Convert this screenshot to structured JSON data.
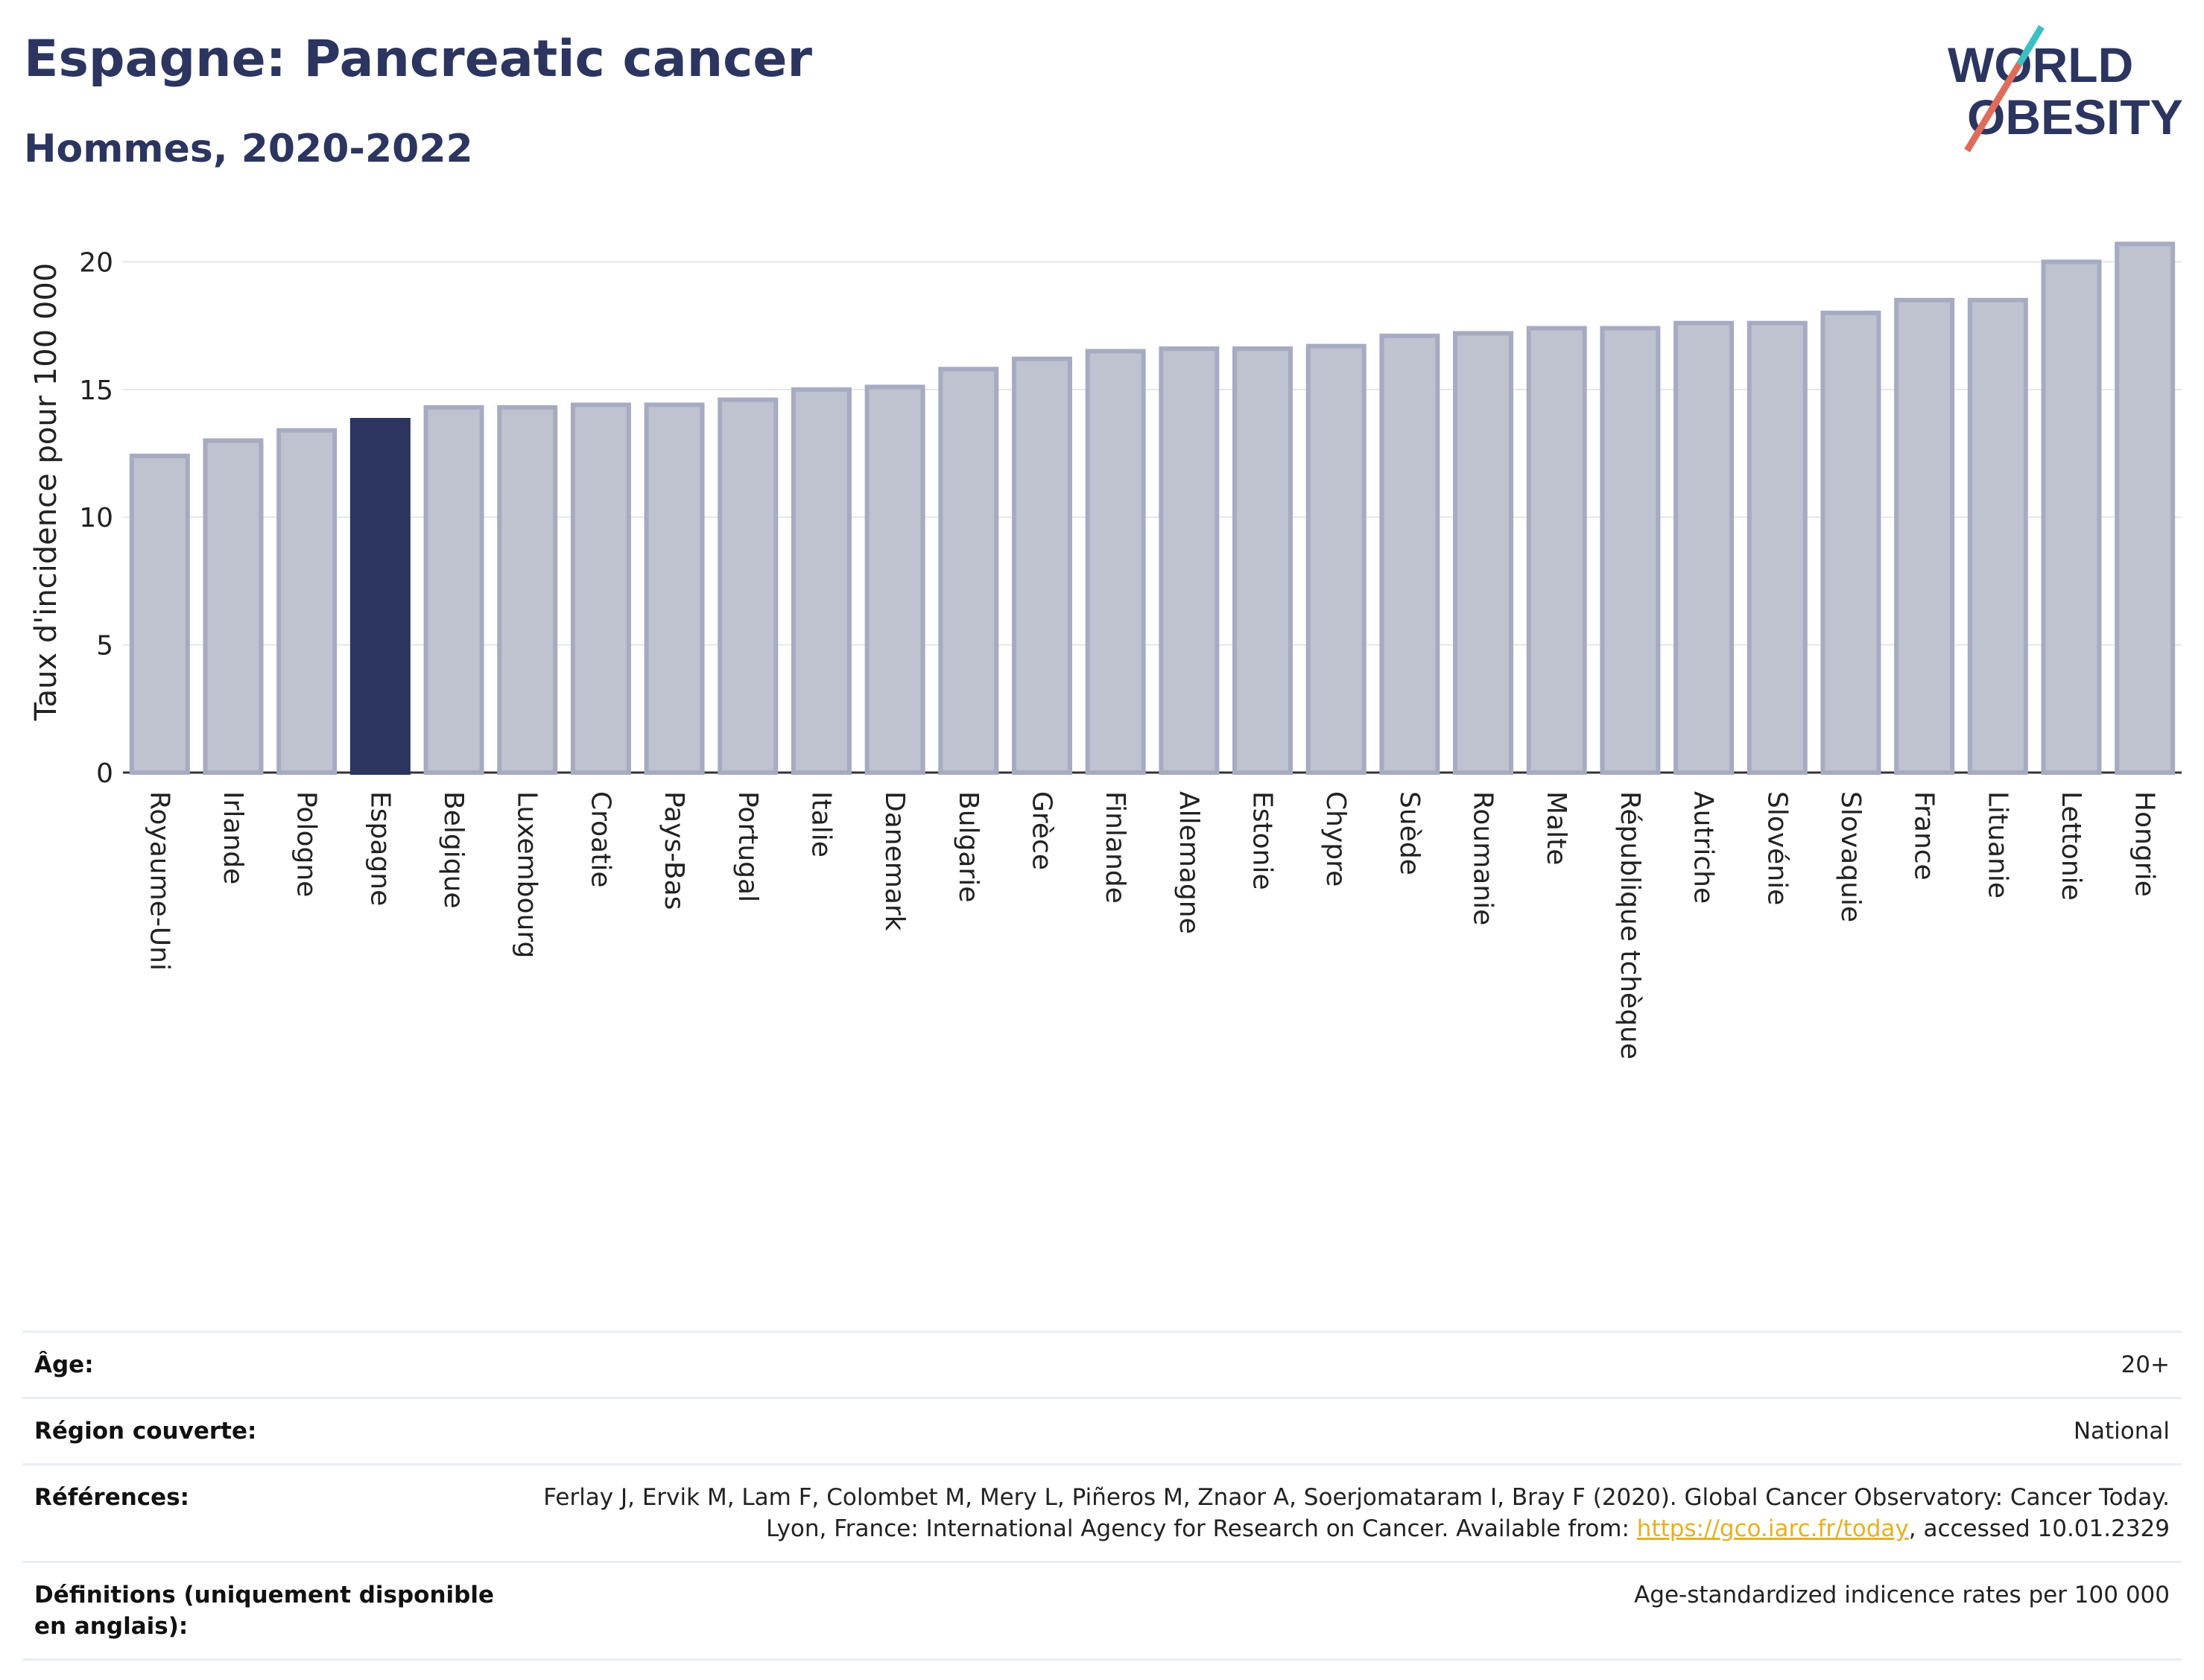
{
  "header": {
    "title": "Espagne: Pancreatic cancer",
    "subtitle": "Hommes, 2020-2022"
  },
  "logo": {
    "line1": "WORLD",
    "line2": "OBESITY"
  },
  "colors": {
    "bar": "#bfc2cf",
    "bar_border": "#a6abc2",
    "highlight": "#2b3560",
    "title": "#2b3560",
    "grid": "#e3e6ea",
    "link": "#e6b020",
    "logo_slash_red": "#e06b5a",
    "logo_slash_teal": "#3cbfc3"
  },
  "chart_data": {
    "type": "bar",
    "ylabel": "Taux d'incidence pour 100 000",
    "xlabel": "",
    "ylim": [
      0,
      21.5
    ],
    "yticks": [
      0,
      5,
      10,
      15,
      20
    ],
    "grid": true,
    "highlight": "Espagne",
    "categories": [
      "Royaume-Uni",
      "Irlande",
      "Pologne",
      "Espagne",
      "Belgique",
      "Luxembourg",
      "Croatie",
      "Pays-Bas",
      "Portugal",
      "Italie",
      "Danemark",
      "Bulgarie",
      "Grèce",
      "Finlande",
      "Allemagne",
      "Estonie",
      "Chypre",
      "Suède",
      "Roumanie",
      "Malte",
      "République tchèque",
      "Autriche",
      "Slovénie",
      "Slovaquie",
      "France",
      "Lituanie",
      "Lettonie",
      "Hongrie"
    ],
    "values": [
      12.4,
      13.0,
      13.4,
      13.8,
      14.3,
      14.3,
      14.4,
      14.4,
      14.6,
      15.0,
      15.1,
      15.8,
      16.2,
      16.5,
      16.6,
      16.6,
      16.7,
      17.1,
      17.2,
      17.4,
      17.4,
      17.6,
      17.6,
      18.0,
      18.5,
      18.5,
      20.0,
      20.7
    ]
  },
  "meta": [
    {
      "key": "Âge:",
      "value": "20+"
    },
    {
      "key": "Région couverte:",
      "value": "National"
    },
    {
      "key": "Références:",
      "value_before": "Ferlay J, Ervik M, Lam F, Colombet M, Mery L, Piñeros M, Znaor A, Soerjomataram I, Bray F (2020). Global Cancer Observatory: Cancer Today. Lyon, France: International Agency for Research on Cancer. Available from: ",
      "link": "https://gco.iarc.fr/today",
      "value_after": ", accessed 10.01.2329"
    },
    {
      "key": "Définitions (uniquement disponible en anglais):",
      "value": "Age-standardized indicence rates per 100 000"
    }
  ]
}
